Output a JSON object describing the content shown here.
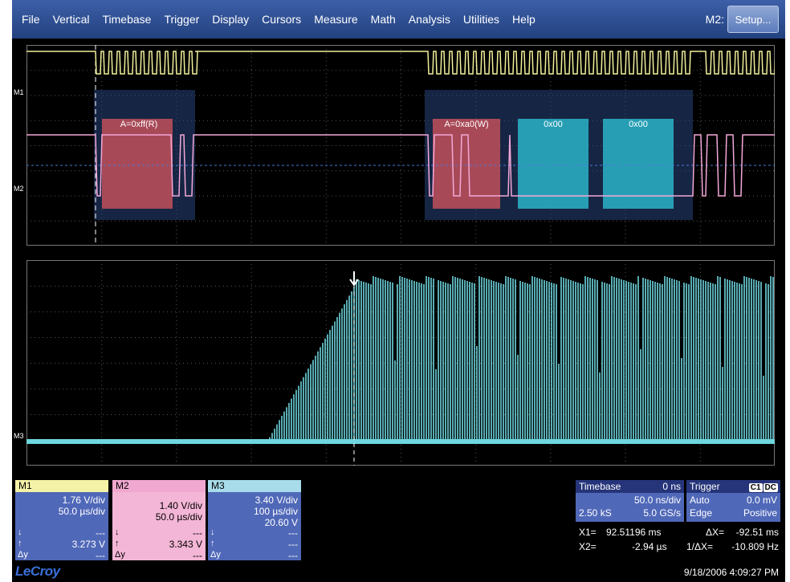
{
  "menu": {
    "items": [
      "File",
      "Vertical",
      "Timebase",
      "Trigger",
      "Display",
      "Cursors",
      "Measure",
      "Math",
      "Analysis",
      "Utilities",
      "Help"
    ],
    "active_channel": "M2:",
    "setup_label": "Setup..."
  },
  "traces": {
    "top_labels": [
      "M1",
      "M2"
    ],
    "bottom_label": "M3",
    "decode": [
      "A=0xff(R)",
      "A=0xa0(W)",
      "0x00",
      "0x00"
    ],
    "colors": {
      "m1": "#f2f09a",
      "m2": "#f4a8d8",
      "m3": "#6ed6de",
      "decode_addr": "#c2505a",
      "decode_data": "#2ab4c8",
      "frame": "#28447a"
    }
  },
  "channels": {
    "m1": {
      "name": "M1",
      "vdiv": "1.76 V/div",
      "tdiv": "50.0 µs/div",
      "sym1": "↓",
      "sym2": "↑",
      "sym3": "Δy",
      "val1": "---",
      "val2": "3.273 V",
      "val3": "---"
    },
    "m2": {
      "name": "M2",
      "vdiv": "1.40 V/div",
      "tdiv": "50.0 µs/div",
      "sym1": "↓",
      "sym2": "↑",
      "sym3": "Δy",
      "val1": "---",
      "val2": "3.343 V",
      "val3": "---"
    },
    "m3": {
      "name": "M3",
      "vdiv": "3.40 V/div",
      "tdiv": "100 µs/div",
      "v3": "20.60 V",
      "sym1": "↓",
      "sym2": "↑",
      "sym3": "Δy",
      "val1": "---",
      "val2": "---",
      "val3": "---"
    }
  },
  "timebase": {
    "title": "Timebase",
    "delay": "0 ns",
    "tdiv": "50.0 ns/div",
    "samples": "2.50 kS",
    "rate": "5.0 GS/s"
  },
  "trigger": {
    "title": "Trigger",
    "ch": "C1",
    "coupling": "DC",
    "mode": "Auto",
    "level": "0.0 mV",
    "type": "Edge",
    "slope": "Positive"
  },
  "cursors": {
    "x1_label": "X1=",
    "x1": "92.51196 ms",
    "dx_label": "ΔX=",
    "dx": "-92.51 ms",
    "x2_label": "X2=",
    "x2": "-2.94 µs",
    "inv_label": "1/ΔX=",
    "inv": "-10.809 Hz"
  },
  "brand": "LeCroy",
  "datetime": "9/18/2006 4:09:27 PM"
}
